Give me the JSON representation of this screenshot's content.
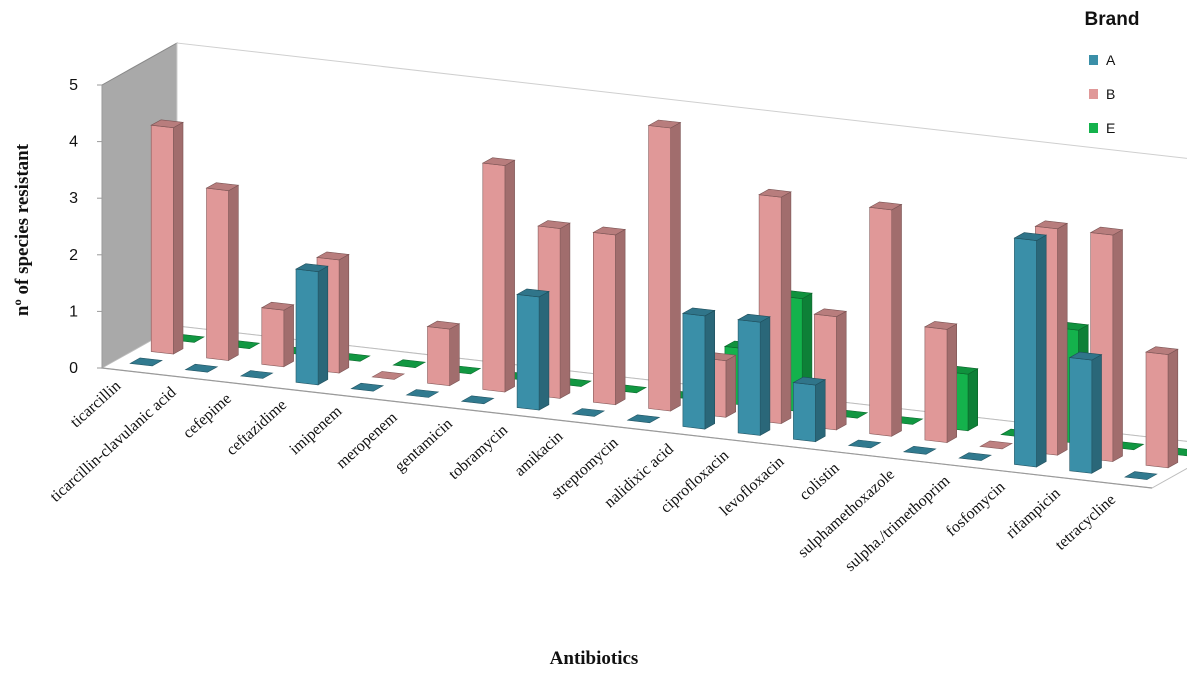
{
  "chart_data": {
    "type": "bar",
    "style": "3d-clustered-depth",
    "xlabel": "Antibiotics",
    "ylabel": "nº of species resistant",
    "ylim": [
      0,
      5
    ],
    "yticks": [
      0,
      1,
      2,
      3,
      4,
      5
    ],
    "grid": false,
    "legend": {
      "title": "Brand",
      "placement": "top-right"
    },
    "categories": [
      "ticarcillin",
      "ticarcillin-clavulanic acid",
      "cefepime",
      "ceftazidime",
      "imipenem",
      "meropenem",
      "gentamicin",
      "tobramycin",
      "amikacin",
      "streptomycin",
      "nalidixic acid",
      "ciprofloxacin",
      "levofloxacin",
      "colistin",
      "sulphamethoxazole",
      "sulpha./trimethoprim",
      "fosfomycin",
      "rifampicin",
      "tetracycline"
    ],
    "series": [
      {
        "name": "A",
        "color": "#3a8fa8",
        "values": [
          0,
          0,
          0,
          2,
          0,
          0,
          0,
          2,
          0,
          0,
          2,
          2,
          1,
          0,
          0,
          0,
          4,
          2,
          0
        ]
      },
      {
        "name": "B",
        "color": "#e09898",
        "values": [
          4,
          3,
          1,
          2,
          0,
          1,
          4,
          3,
          3,
          5,
          1,
          4,
          2,
          4,
          2,
          0,
          4,
          4,
          2
        ]
      },
      {
        "name": "E",
        "color": "#14b24c",
        "values": [
          0,
          0,
          0,
          0,
          0,
          0,
          0,
          0,
          0,
          0,
          1,
          2,
          0,
          0,
          1,
          0,
          2,
          0,
          0
        ]
      }
    ]
  }
}
